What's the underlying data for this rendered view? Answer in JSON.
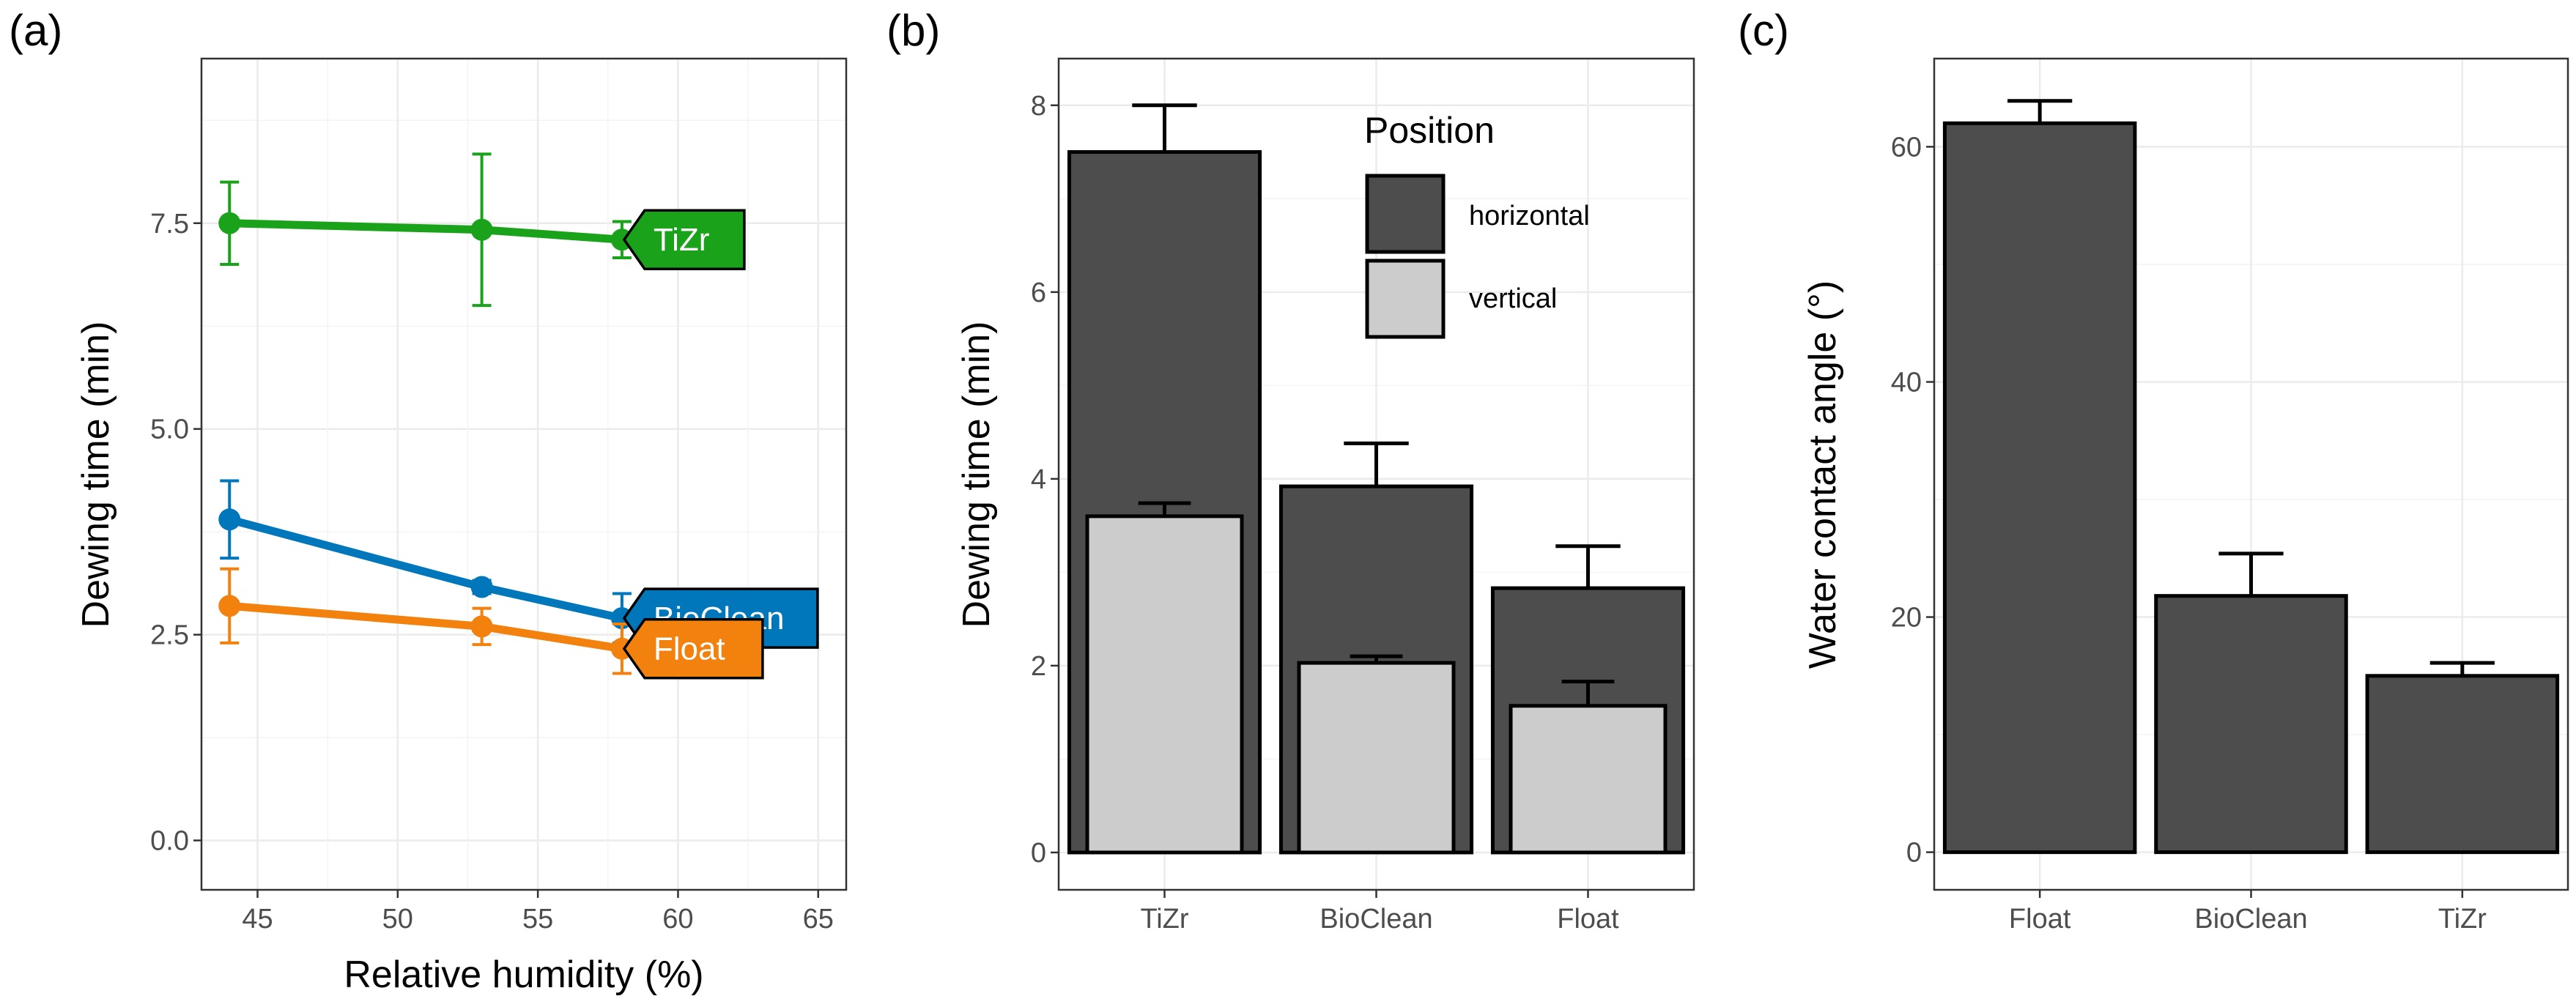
{
  "colors": {
    "TiZr": "#1aa31a",
    "BioClean": "#0077bb",
    "Float": "#f2810e",
    "horizontal": "#4d4d4d",
    "vertical": "#cccccc"
  },
  "chart_data": [
    {
      "type": "line",
      "panel_label": "(a)",
      "xlabel": "Relative humidity (%)",
      "ylabel": "Dewing time (min)",
      "xlim": [
        43,
        66
      ],
      "ylim": [
        -0.6,
        9.5
      ],
      "xticks": [
        45,
        50,
        55,
        60,
        65
      ],
      "xtick_labels": [
        "45",
        "50",
        "55",
        "60",
        "65"
      ],
      "yticks": [
        0,
        2.5,
        5,
        7.5
      ],
      "ytick_labels": [
        "0.0",
        "2.5",
        "5.0",
        "7.5"
      ],
      "grid": true,
      "series": [
        {
          "name": "TiZr",
          "x": [
            44,
            53,
            58
          ],
          "y": [
            7.5,
            7.42,
            7.3
          ],
          "err": [
            0.5,
            0.92,
            0.22
          ]
        },
        {
          "name": "BioClean",
          "x": [
            44,
            53,
            58
          ],
          "y": [
            3.9,
            3.08,
            2.7
          ],
          "err": [
            0.47,
            0.08,
            0.3
          ]
        },
        {
          "name": "Float",
          "x": [
            44,
            53,
            58
          ],
          "y": [
            2.85,
            2.6,
            2.33
          ],
          "err": [
            0.45,
            0.22,
            0.3
          ]
        }
      ]
    },
    {
      "type": "bar",
      "panel_label": "(b)",
      "xlabel": "",
      "ylabel": "Dewing time (min)",
      "ylim": [
        -0.4,
        8.5
      ],
      "yticks": [
        0,
        2,
        4,
        6,
        8
      ],
      "ytick_labels": [
        "0",
        "2",
        "4",
        "6",
        "8"
      ],
      "categories": [
        "TiZr",
        "BioClean",
        "Float"
      ],
      "legend_title": "Position",
      "legend_position": "top-right",
      "grid": true,
      "series": [
        {
          "name": "horizontal",
          "values": [
            7.5,
            3.92,
            2.83
          ],
          "err": [
            0.5,
            0.46,
            0.45
          ]
        },
        {
          "name": "vertical",
          "values": [
            3.6,
            2.03,
            1.57
          ],
          "err": [
            0.14,
            0.07,
            0.26
          ]
        }
      ]
    },
    {
      "type": "bar",
      "panel_label": "(c)",
      "xlabel": "",
      "ylabel": "Water contact angle (°)",
      "ylim": [
        -3.2,
        67.5
      ],
      "yticks": [
        0,
        20,
        40,
        60
      ],
      "ytick_labels": [
        "0",
        "20",
        "40",
        "60"
      ],
      "categories": [
        "Float",
        "BioClean",
        "TiZr"
      ],
      "grid": true,
      "series": [
        {
          "values": [
            62,
            21.8,
            15
          ],
          "err": [
            1.9,
            3.6,
            1.1
          ]
        }
      ]
    }
  ]
}
